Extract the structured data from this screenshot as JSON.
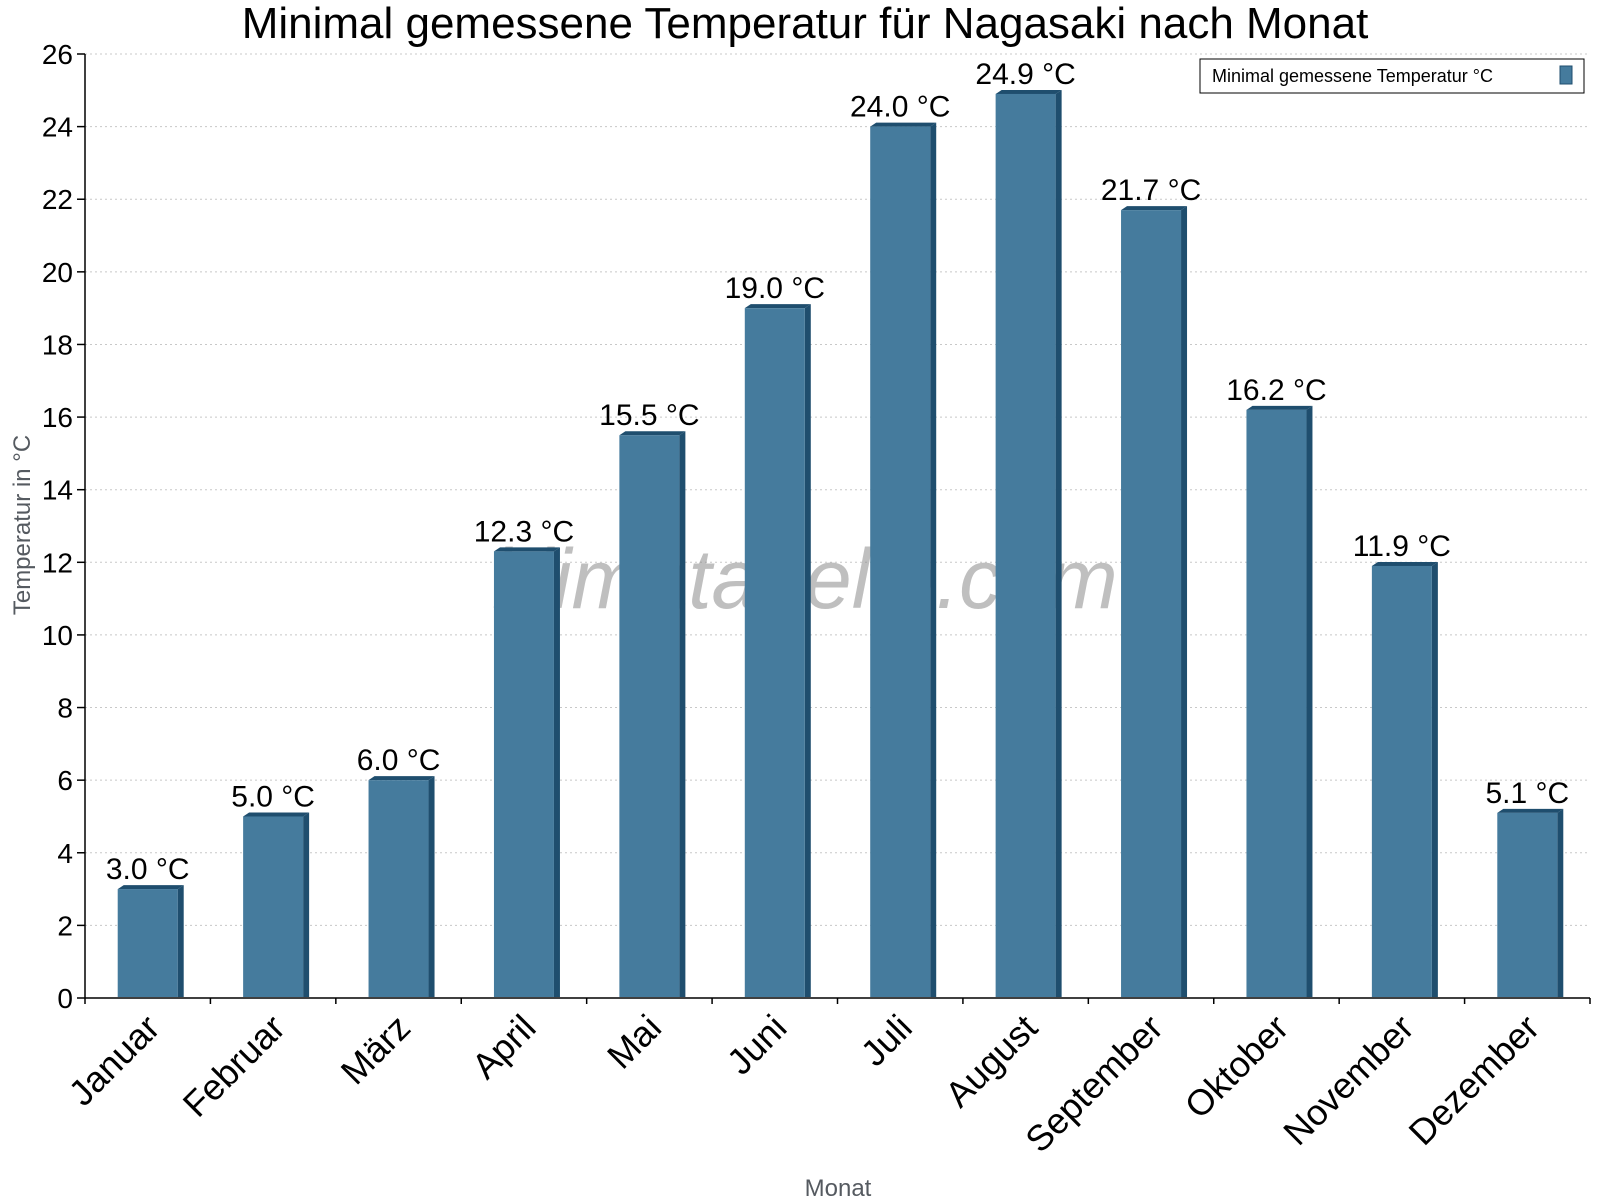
{
  "chart_data": {
    "type": "bar",
    "title": "Minimal gemessene Temperatur für Nagasaki nach Monat",
    "xlabel": "Monat",
    "ylabel": "Temperatur in °C",
    "ylim": [
      0,
      26
    ],
    "yticks": [
      0,
      2,
      4,
      6,
      8,
      10,
      12,
      14,
      16,
      18,
      20,
      22,
      24,
      26
    ],
    "grid": true,
    "legend_position": "top-right",
    "categories": [
      "Januar",
      "Februar",
      "März",
      "April",
      "Mai",
      "Juni",
      "Juli",
      "August",
      "September",
      "Oktober",
      "November",
      "Dezember"
    ],
    "series": [
      {
        "name": "Minimal gemessene Temperatur °C",
        "values": [
          3.0,
          5.0,
          6.0,
          12.3,
          15.5,
          19.0,
          24.0,
          24.9,
          21.7,
          16.2,
          11.9,
          5.1
        ],
        "labels": [
          "3.0 °C",
          "5.0 °C",
          "6.0 °C",
          "12.3 °C",
          "15.5 °C",
          "19.0 °C",
          "24.0 °C",
          "24.9 °C",
          "21.7 °C",
          "16.2 °C",
          "11.9 °C",
          "5.1 °C"
        ],
        "color": "#457b9d",
        "shade_color": "#1f4e6e"
      }
    ],
    "watermark": "klimatabelle.com"
  }
}
